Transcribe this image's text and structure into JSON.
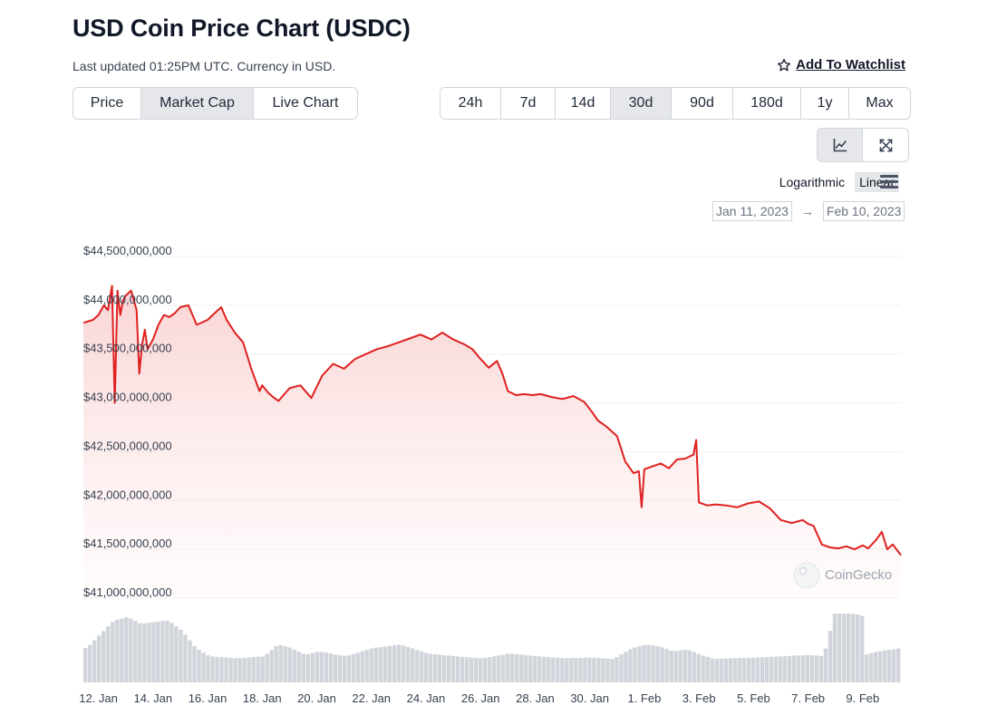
{
  "header": {
    "title": "USD Coin Price Chart (USDC)",
    "subtitle": "Last updated 01:25PM UTC. Currency in USD.",
    "watchlist_label": "Add To Watchlist",
    "watchlist_icon": "star-outline-icon"
  },
  "view_tabs": [
    {
      "label": "Price",
      "active": false
    },
    {
      "label": "Market Cap",
      "active": true
    },
    {
      "label": "Live Chart",
      "active": false
    }
  ],
  "range_tabs": [
    {
      "label": "24h",
      "active": false
    },
    {
      "label": "7d",
      "active": false
    },
    {
      "label": "14d",
      "active": false
    },
    {
      "label": "30d",
      "active": true
    },
    {
      "label": "90d",
      "active": false
    },
    {
      "label": "180d",
      "active": false
    },
    {
      "label": "1y",
      "active": false
    },
    {
      "label": "Max",
      "active": false
    }
  ],
  "chart_mode": {
    "line_icon": "line-chart-icon",
    "expand_icon": "expand-icon"
  },
  "scale": {
    "logarithmic": "Logarithmic",
    "linear": "Linear",
    "active": "linear",
    "menu_icon": "hamburger-menu-icon"
  },
  "date_range": {
    "from": "Jan 11, 2023",
    "to": "Feb 10, 2023",
    "arrow": "→"
  },
  "watermark": "CoinGecko",
  "colors": {
    "line": "#e02020",
    "area": "#fde8e8",
    "volume": "#d1d5db",
    "active_tab": "#e5e7eb"
  },
  "chart_data": {
    "type": "line",
    "title": "",
    "xlabel": "",
    "ylabel": "",
    "ylim": [
      41000000000,
      44500000000
    ],
    "yticks": [
      "$44,500,000,000",
      "$44,000,000,000",
      "$43,500,000,000",
      "$43,000,000,000",
      "$42,500,000,000",
      "$42,000,000,000",
      "$41,500,000,000",
      "$41,000,000,000"
    ],
    "ytick_values": [
      44500000000,
      44000000000,
      43500000000,
      43000000000,
      42500000000,
      42000000000,
      41500000000,
      41000000000
    ],
    "xticks": [
      "12. Jan",
      "14. Jan",
      "16. Jan",
      "18. Jan",
      "20. Jan",
      "22. Jan",
      "24. Jan",
      "26. Jan",
      "28. Jan",
      "30. Jan",
      "1. Feb",
      "3. Feb",
      "5. Feb",
      "7. Feb",
      "9. Feb"
    ],
    "xtick_days": [
      1,
      3,
      5,
      7,
      9,
      11,
      13,
      15,
      17,
      19,
      21,
      23,
      25,
      27,
      29
    ],
    "x_day_range": [
      0.45,
      30.4
    ],
    "grid": true,
    "series": [
      {
        "x": [
          0.45,
          0.8,
          1.0,
          1.2,
          1.35,
          1.5,
          1.6,
          1.7,
          1.8,
          1.9,
          2.0,
          2.2,
          2.4,
          2.5,
          2.6,
          2.7,
          2.8,
          3.0,
          3.2,
          3.4,
          3.6,
          3.8,
          4.0,
          4.3,
          4.6,
          5.0,
          5.3,
          5.5,
          5.7,
          6.0,
          6.3,
          6.6,
          6.9,
          7.0,
          7.2,
          7.4,
          7.6,
          8.0,
          8.4,
          8.8,
          9.2,
          9.6,
          10.0,
          10.4,
          10.8,
          11.2,
          11.6,
          12.0,
          12.4,
          12.8,
          13.2,
          13.6,
          14.0,
          14.4,
          14.7,
          15.0,
          15.3,
          15.6,
          15.8,
          16.0,
          16.3,
          16.6,
          16.9,
          17.2,
          17.6,
          18.0,
          18.4,
          18.8,
          19.1,
          19.3,
          19.6,
          20.0,
          20.3,
          20.6,
          20.8,
          20.9,
          21.0,
          21.3,
          21.6,
          21.9,
          22.2,
          22.5,
          22.8,
          22.9,
          23.0,
          23.3,
          23.6,
          24.0,
          24.4,
          24.8,
          25.2,
          25.6,
          26.0,
          26.4,
          26.8,
          27.0,
          27.2,
          27.5,
          27.8,
          28.1,
          28.4,
          28.7,
          29.0,
          29.2,
          29.5,
          29.7,
          29.9,
          30.1,
          30.4
        ],
        "values": [
          43820000000,
          43850000000,
          43900000000,
          44000000000,
          43950000000,
          44200000000,
          43000000000,
          44150000000,
          43900000000,
          44050000000,
          44100000000,
          44150000000,
          43950000000,
          43300000000,
          43600000000,
          43750000000,
          43550000000,
          43650000000,
          43800000000,
          43900000000,
          43880000000,
          43920000000,
          43980000000,
          44000000000,
          43800000000,
          43850000000,
          43930000000,
          43980000000,
          43850000000,
          43720000000,
          43620000000,
          43350000000,
          43120000000,
          43180000000,
          43110000000,
          43060000000,
          43020000000,
          43150000000,
          43180000000,
          43050000000,
          43280000000,
          43400000000,
          43350000000,
          43450000000,
          43500000000,
          43550000000,
          43580000000,
          43620000000,
          43660000000,
          43700000000,
          43650000000,
          43720000000,
          43650000000,
          43600000000,
          43550000000,
          43450000000,
          43360000000,
          43430000000,
          43300000000,
          43120000000,
          43080000000,
          43090000000,
          43080000000,
          43090000000,
          43060000000,
          43040000000,
          43070000000,
          43010000000,
          42900000000,
          42820000000,
          42760000000,
          42660000000,
          42400000000,
          42280000000,
          42300000000,
          41930000000,
          42320000000,
          42350000000,
          42380000000,
          42330000000,
          42420000000,
          42430000000,
          42470000000,
          42620000000,
          41980000000,
          41950000000,
          41960000000,
          41950000000,
          41930000000,
          41970000000,
          41990000000,
          41920000000,
          41800000000,
          41770000000,
          41800000000,
          41760000000,
          41740000000,
          41550000000,
          41520000000,
          41510000000,
          41530000000,
          41500000000,
          41540000000,
          41510000000,
          41600000000,
          41680000000,
          41500000000,
          41550000000,
          41440000000
        ]
      }
    ],
    "volume": {
      "x": [
        0.5,
        1.0,
        1.5,
        2.0,
        2.5,
        3.0,
        3.5,
        4.0,
        4.5,
        5.0,
        6.0,
        7.0,
        7.5,
        8.0,
        8.5,
        9.0,
        10.0,
        11.0,
        12.0,
        13.0,
        14.0,
        15.0,
        16.0,
        17.0,
        18.0,
        19.0,
        19.8,
        20.5,
        21.0,
        21.5,
        22.0,
        22.5,
        23.0,
        23.5,
        24.0,
        25.0,
        26.0,
        27.0,
        27.5,
        27.9,
        28.0,
        28.5,
        28.9,
        29.0,
        29.5,
        30.0,
        30.4
      ],
      "values": [
        0.5,
        0.7,
        0.9,
        0.95,
        0.85,
        0.88,
        0.9,
        0.75,
        0.5,
        0.38,
        0.35,
        0.38,
        0.55,
        0.5,
        0.4,
        0.45,
        0.38,
        0.5,
        0.55,
        0.42,
        0.38,
        0.35,
        0.42,
        0.38,
        0.35,
        0.36,
        0.34,
        0.5,
        0.55,
        0.52,
        0.45,
        0.48,
        0.4,
        0.34,
        0.35,
        0.36,
        0.38,
        0.4,
        0.38,
        1.0,
        1.0,
        1.0,
        0.98,
        0.4,
        0.45,
        0.48,
        0.5
      ]
    }
  }
}
